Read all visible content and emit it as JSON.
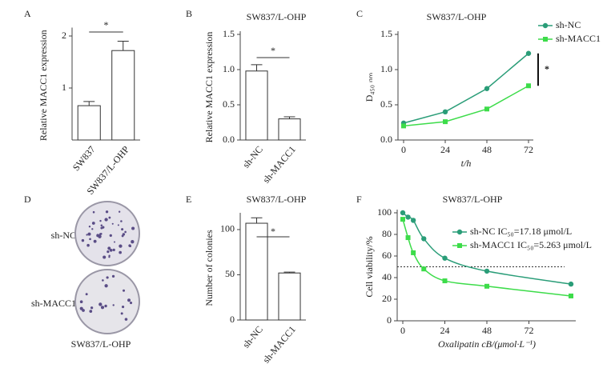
{
  "chart_data": [
    {
      "panel": "A",
      "type": "bar",
      "ylabel": "Relative MACC1 expression",
      "categories": [
        "SW837",
        "SW837/L-OHP"
      ],
      "values": [
        0.66,
        1.72
      ],
      "errors": [
        0.08,
        0.18
      ],
      "ylim": [
        0,
        2.1
      ],
      "yticks": [
        1,
        2
      ],
      "annotation": "*",
      "color": "#ffffff"
    },
    {
      "panel": "B",
      "type": "bar",
      "title": "SW837/L-OHP",
      "ylabel": "Relative MACC1 expression",
      "categories": [
        "sh-NC",
        "sh-MACC1"
      ],
      "values": [
        0.98,
        0.3
      ],
      "errors": [
        0.09,
        0.03
      ],
      "ylim": [
        0,
        1.5
      ],
      "yticks": [
        {
          "value": 0,
          "label": "0.0"
        },
        0.5,
        {
          "value": 1,
          "label": "1.0"
        },
        1.5
      ],
      "annotation": "*",
      "color": "#ffffff"
    },
    {
      "panel": "C",
      "type": "line",
      "title": "SW837/L-OHP",
      "ylabel": "D₄₅₀ ₙₘ",
      "xlabel": "t/h",
      "x": [
        0,
        24,
        48,
        72
      ],
      "series": [
        {
          "name": "sh-NC",
          "color": "#2a9d78",
          "marker": "circle",
          "values": [
            0.24,
            0.4,
            0.73,
            1.23
          ]
        },
        {
          "name": "sh-MACC1",
          "color": "#3ddc4a",
          "marker": "square",
          "values": [
            0.2,
            0.26,
            0.44,
            0.77
          ]
        }
      ],
      "xlim": [
        0,
        72
      ],
      "xticks": [
        0,
        24,
        48,
        72
      ],
      "ylim": [
        0,
        1.5
      ],
      "yticks": [
        {
          "value": 0,
          "label": "0.0"
        },
        0.5,
        {
          "value": 1,
          "label": "1.0"
        },
        1.5
      ],
      "annotation": "*"
    },
    {
      "panel": "E",
      "type": "bar",
      "title": "SW837/L-OHP",
      "ylabel": "Number of colonies",
      "categories": [
        "sh-NC",
        "sh-MACC1"
      ],
      "values": [
        107,
        52
      ],
      "errors": [
        6,
        1
      ],
      "ylim": [
        0,
        115
      ],
      "yticks": [
        0,
        50,
        100
      ],
      "annotation": "*",
      "color": "#ffffff"
    },
    {
      "panel": "F",
      "type": "curve",
      "title": "SW837/L-OHP",
      "ylabel": "Cell viability/%",
      "xlabel": "Oxalipatin cB/(μmol·L⁻¹)",
      "x": [
        0,
        3,
        6,
        12,
        24,
        48,
        96
      ],
      "series": [
        {
          "name": "sh-NC IC₅₀=17.18 μmol/L",
          "color": "#2a9d78",
          "marker": "circle",
          "values": [
            100,
            96,
            93,
            76,
            58,
            46,
            34
          ]
        },
        {
          "name": "sh-MACC1 IC₅₀=5.263 μmol/L",
          "color": "#3ddc4a",
          "marker": "square",
          "values": [
            94,
            77,
            63,
            48,
            37,
            32,
            23
          ]
        }
      ],
      "xlim": [
        0,
        96
      ],
      "xticks": [
        0,
        24,
        48,
        72
      ],
      "ylim": [
        0,
        100
      ],
      "yticks": [
        0,
        20,
        40,
        60,
        80,
        100
      ],
      "reference_line": 50
    }
  ],
  "panel_d": {
    "label": "D",
    "rows": [
      "sh-NC",
      "sh-MACC1"
    ],
    "caption": "SW837/L-OHP"
  }
}
